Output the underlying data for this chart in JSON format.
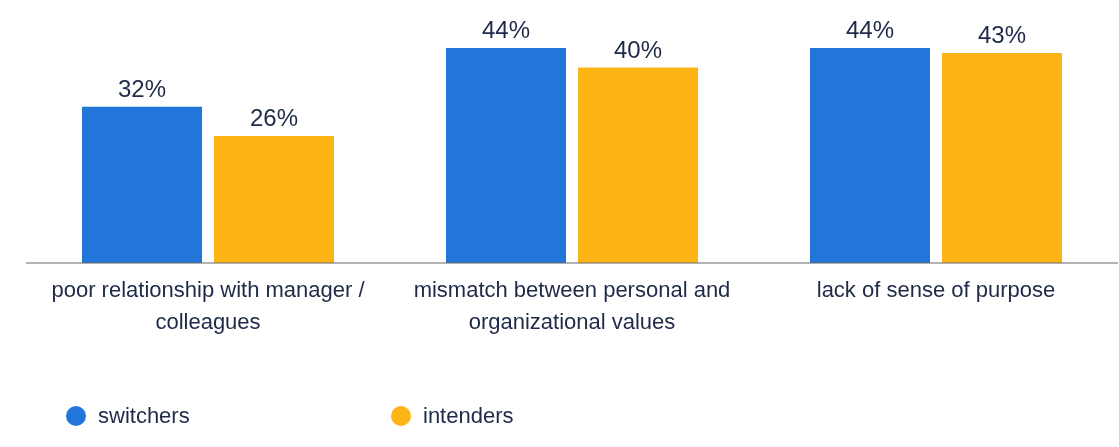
{
  "chart_data": {
    "type": "bar",
    "categories": [
      "poor relationship with manager / colleagues",
      "mismatch between personal and organizational values",
      "lack of sense of purpose"
    ],
    "series": [
      {
        "name": "switchers",
        "color": "#2376d9",
        "values": [
          32,
          44,
          44
        ],
        "value_labels": [
          "32%",
          "44%",
          "44%"
        ]
      },
      {
        "name": "intenders",
        "color": "#fdb515",
        "values": [
          26,
          40,
          43
        ],
        "value_labels": [
          "26%",
          "40%",
          "43%"
        ]
      }
    ],
    "legend": "bottom left",
    "grid": false
  }
}
